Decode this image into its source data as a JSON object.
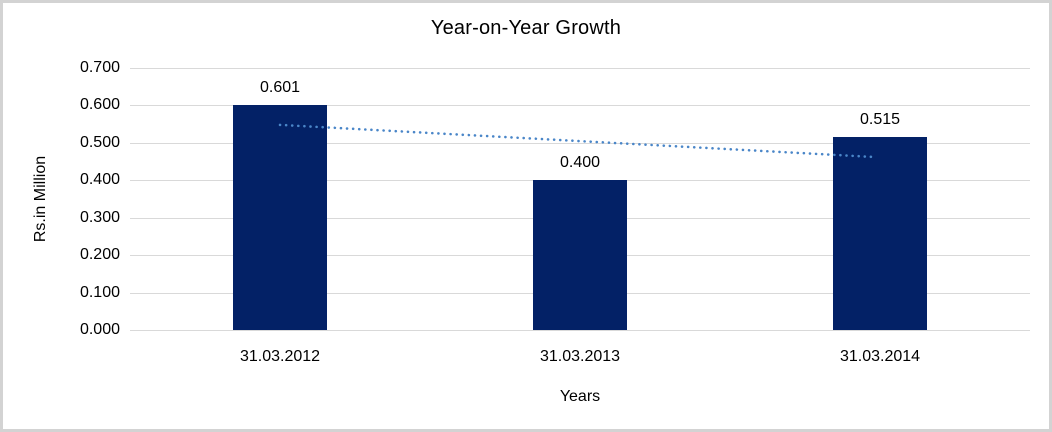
{
  "chart_data": {
    "type": "bar",
    "title": "Year-on-Year Growth",
    "categories": [
      "31.03.2012",
      "31.03.2013",
      "31.03.2014"
    ],
    "values": [
      0.601,
      0.4,
      0.515
    ],
    "data_labels": [
      "0.601",
      "0.400",
      "0.515"
    ],
    "xlabel": "Years",
    "ylabel": "Rs.in Million",
    "ylim": [
      0,
      0.7
    ],
    "ytick_step": 0.1,
    "ytick_labels": [
      "0.000",
      "0.100",
      "0.200",
      "0.300",
      "0.400",
      "0.500",
      "0.600",
      "0.700"
    ],
    "grid": true,
    "legend": "none",
    "trendline": {
      "type": "linear",
      "style": "dotted",
      "start_value": 0.548,
      "end_value": 0.462,
      "color": "#4a86c8"
    },
    "colors": {
      "bar": "#032166",
      "gridline": "#d9d9d9",
      "frame_border": "#d3d3d3",
      "text": "#000000",
      "background": "#ffffff"
    }
  }
}
